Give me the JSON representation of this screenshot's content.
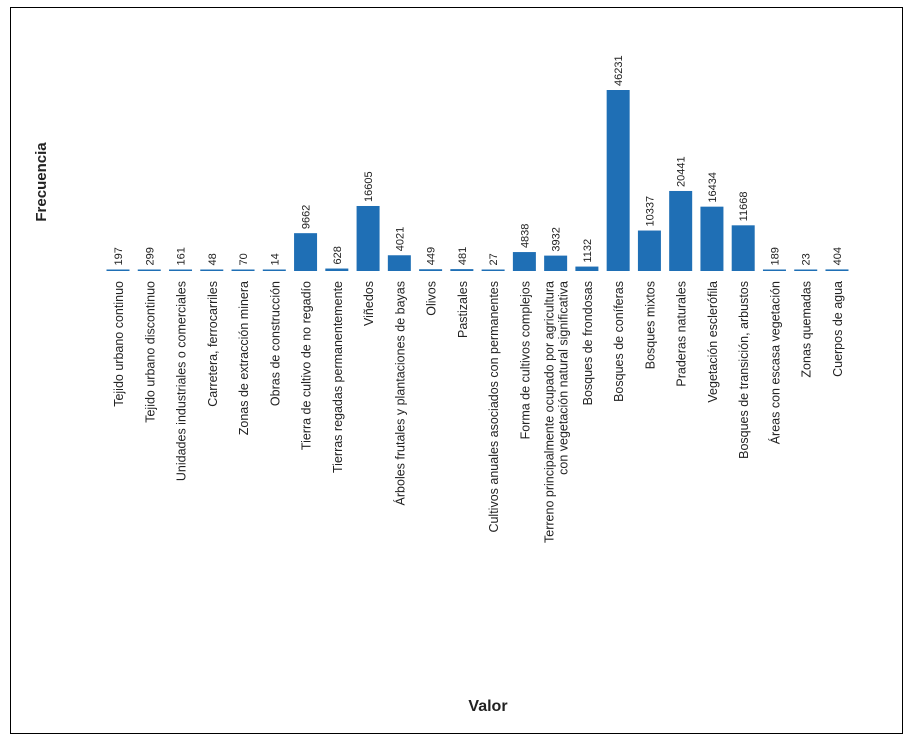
{
  "chart_data": {
    "type": "bar",
    "ylabel": "Frecuencia",
    "xlabel": "Valor",
    "bar_color": "#1f6fb5",
    "categories": [
      "Tejido urbano continuo",
      "Tejido urbano discontinuo",
      "Unidades industriales o comerciales",
      "Carretera, ferrocarriles",
      "Zonas de extracción minera",
      "Obras de construcción",
      "Tierra de cultivo de no regadío",
      "Tierras regadas permanentemente",
      "Viñedos",
      "Árboles frutales y plantaciones de bayas",
      "Olivos",
      "Pastizales",
      "Cultivos anuales asociados con permanentes",
      "Forma de cultivos complejos",
      "Terreno principalmente ocupado por agricultura|con vegetación natural significativa",
      "Bosques de frondosas",
      "Bosques de coníferas",
      "Bosques mixtos",
      "Praderas naturales",
      "Vegetación esclerófila",
      "Bosques de transición, arbustos",
      "Áreas con escasa vegetación",
      "Zonas quemadas",
      "Cuerpos de agua"
    ],
    "values": [
      197,
      299,
      161,
      48,
      70,
      14,
      9662,
      628,
      16605,
      4021,
      449,
      481,
      27,
      4838,
      3932,
      1132,
      46231,
      10337,
      20441,
      16434,
      11668,
      189,
      23,
      404
    ],
    "value_labels": [
      "197",
      "299",
      "161",
      "48",
      "70",
      "14",
      "9662",
      "628",
      "16605",
      "4021",
      "449",
      "481",
      "27",
      "4838",
      "3932",
      "1132",
      "46231",
      "10337",
      "20441",
      "16434",
      "11668",
      "189",
      "23",
      "404"
    ],
    "ylim": [
      0,
      46231
    ],
    "grid": false,
    "legend": "none"
  }
}
